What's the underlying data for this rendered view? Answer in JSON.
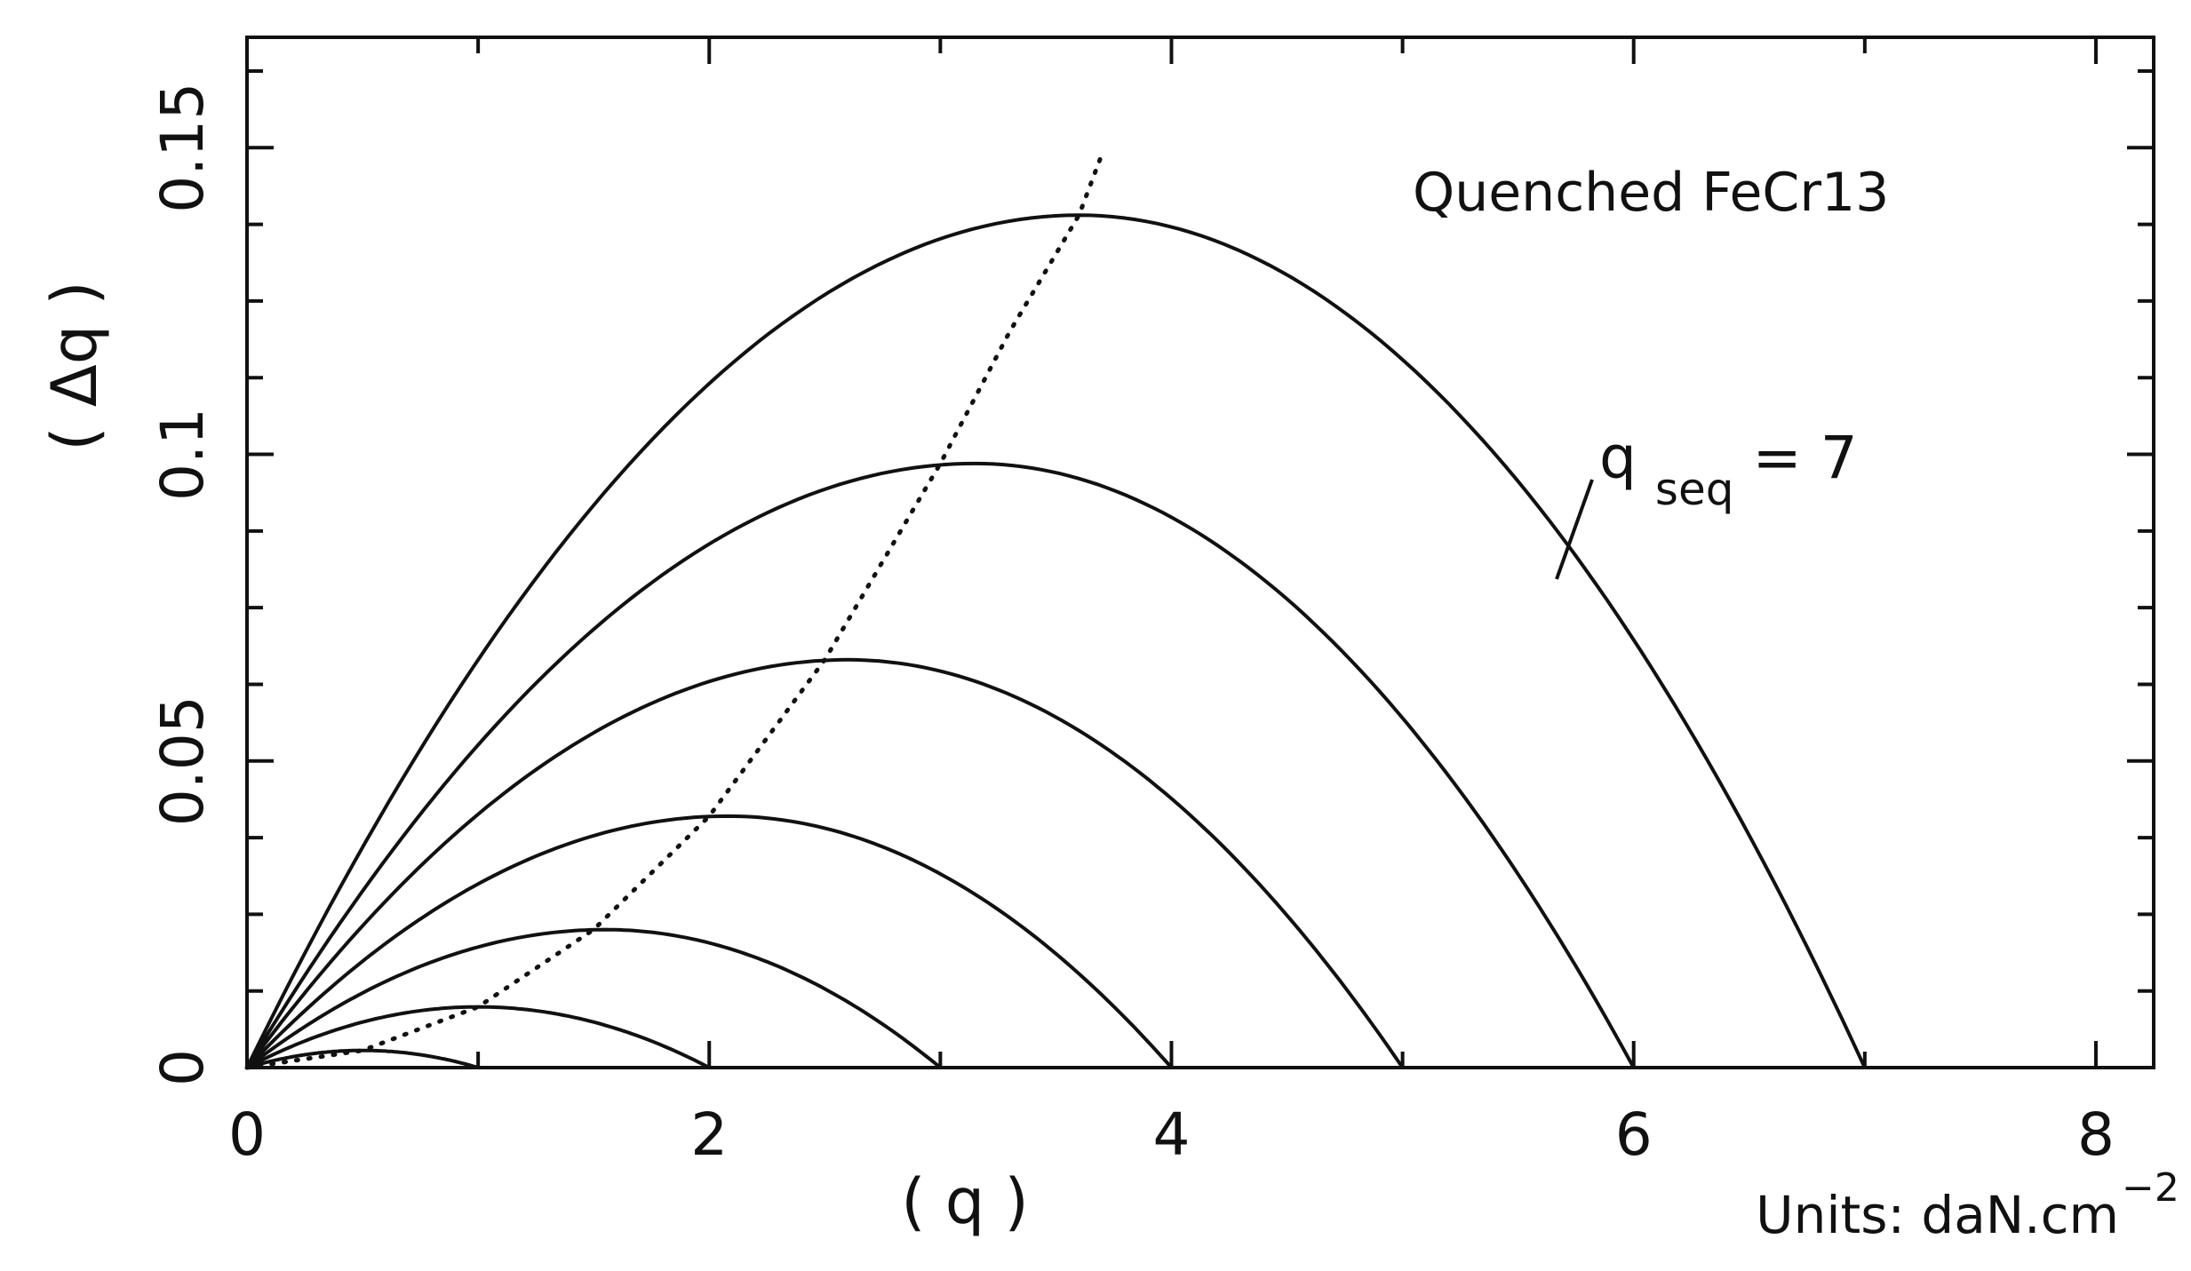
{
  "chart_data": {
    "type": "line",
    "annotation": "Quenched FeCr13",
    "xlabel": "( q )",
    "ylabel": "( Δq )",
    "units": {
      "prefix": "Units: daN.cm",
      "exponent": "−2"
    },
    "xlim": [
      0,
      8.25
    ],
    "ylim": [
      0,
      0.168
    ],
    "xticks": [
      0,
      2,
      4,
      6,
      8
    ],
    "xtick_labels": [
      "0",
      "2",
      "4",
      "6",
      "8"
    ],
    "yticks": [
      0,
      0.05,
      0.1,
      0.15
    ],
    "ytick_labels": [
      "0",
      "0.05",
      "0.1",
      "0.15"
    ],
    "curve_label": {
      "main": "q",
      "sub": "seq",
      "tail": "= 7"
    },
    "series": [
      {
        "qseq": 1,
        "max_q": 0.5,
        "max_dq": 0.0028,
        "style": "solid"
      },
      {
        "qseq": 2,
        "max_q": 1.0,
        "max_dq": 0.0099,
        "style": "solid"
      },
      {
        "qseq": 3,
        "max_q": 1.55,
        "max_dq": 0.0225,
        "style": "solid"
      },
      {
        "qseq": 4,
        "max_q": 2.08,
        "max_dq": 0.041,
        "style": "solid"
      },
      {
        "qseq": 5,
        "max_q": 2.6,
        "max_dq": 0.0665,
        "style": "solid"
      },
      {
        "qseq": 6,
        "max_q": 3.15,
        "max_dq": 0.0985,
        "style": "solid"
      },
      {
        "qseq": 7,
        "max_q": 3.6,
        "max_dq": 0.139,
        "style": "solid"
      }
    ],
    "locus": {
      "style": "dotted",
      "x": [
        0,
        0.5,
        1.0,
        1.5,
        2.0,
        2.5,
        3.0,
        3.3,
        3.6,
        3.7
      ],
      "y": [
        0,
        0.0028,
        0.0099,
        0.0225,
        0.041,
        0.0665,
        0.0985,
        0.12,
        0.139,
        0.149
      ]
    }
  }
}
